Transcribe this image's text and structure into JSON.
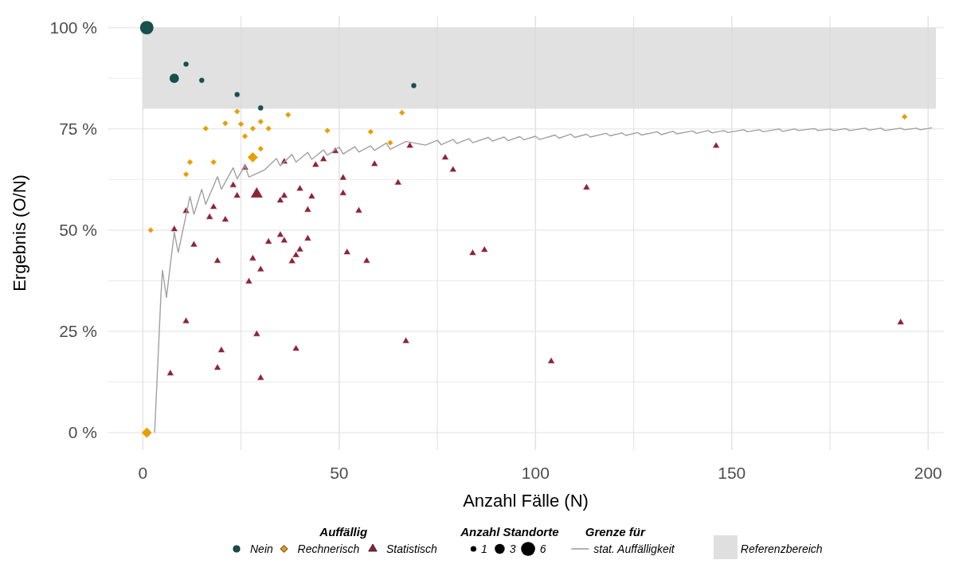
{
  "chart_data": {
    "type": "bubble",
    "xlabel": "Anzahl Fälle (N)",
    "ylabel": "Ergebnis (O/N)",
    "legend_title": "Auffällig",
    "annotations": [
      "Anzahl Standorte",
      "Grenze für"
    ],
    "xlim": [
      -9,
      204
    ],
    "ylim": [
      -4.3,
      102.9
    ],
    "xticks": [
      0,
      {
        "value": 25,
        "label": null
      },
      50,
      {
        "value": 75,
        "label": null
      },
      100,
      {
        "value": 125,
        "label": null
      },
      150,
      {
        "value": 175,
        "label": null
      },
      200
    ],
    "yticks": [
      {
        "value": 0,
        "label": "0 %"
      },
      {
        "value": 12.5,
        "label": null
      },
      {
        "value": 25,
        "label": "25 %"
      },
      {
        "value": 37.5,
        "label": null
      },
      {
        "value": 50,
        "label": "50 %"
      },
      {
        "value": 62.5,
        "label": null
      },
      {
        "value": 75,
        "label": "75 %"
      },
      {
        "value": 87.5,
        "label": null
      },
      {
        "value": 100,
        "label": "100 %"
      }
    ],
    "grid": true,
    "legend": "bottom",
    "size_legend": [
      1,
      3,
      6
    ],
    "bands": [
      {
        "axis": "y",
        "from": 80,
        "to": 100,
        "label": "Referenzbereich",
        "color": "#dfdfdf"
      }
    ],
    "series": [
      {
        "name": "Nein",
        "marker": "circle",
        "color": "#164f4c",
        "x": [
          1,
          11,
          8,
          15,
          24,
          30,
          69
        ],
        "values": [
          100,
          91,
          87.5,
          87,
          83.5,
          80.2,
          85.7
        ],
        "sizes": [
          6,
          1,
          3,
          1,
          1,
          1,
          1
        ]
      },
      {
        "name": "Rechnerisch",
        "marker": "diamond",
        "color": "#e69f00",
        "x": [
          24,
          37,
          66,
          16,
          21,
          25,
          28,
          30,
          32,
          26,
          47,
          58,
          63,
          30,
          28,
          12,
          18,
          11,
          2,
          1,
          194
        ],
        "values": [
          79.3,
          78.5,
          79,
          75.1,
          76.4,
          76.2,
          75.1,
          76.8,
          75.1,
          73.2,
          74.6,
          74.3,
          71.6,
          70.1,
          68,
          66.8,
          66.8,
          63.8,
          50,
          0,
          78
        ],
        "sizes": [
          1,
          1,
          1,
          1,
          1,
          1,
          1,
          1,
          1,
          1,
          1,
          1,
          1,
          1,
          3,
          1,
          1,
          1,
          1,
          3,
          1
        ]
      },
      {
        "name": "Statistisch",
        "marker": "triangle",
        "color": "#8b2436",
        "x": [
          26,
          36,
          44,
          46,
          49,
          59,
          68,
          51,
          65,
          23,
          29,
          24,
          36,
          35,
          40,
          43,
          51,
          42,
          55,
          11,
          18,
          17,
          21,
          8,
          35,
          36,
          42,
          32,
          13,
          40,
          39,
          38,
          52,
          57,
          19,
          28,
          30,
          27,
          11,
          29,
          20,
          39,
          67,
          19,
          7,
          30,
          77,
          79,
          113,
          146,
          84,
          87,
          104,
          193
        ],
        "values": [
          65.4,
          66.9,
          66.1,
          67.5,
          69.5,
          66.3,
          70.8,
          62.9,
          61.7,
          61.1,
          58.9,
          58.5,
          58.5,
          57.3,
          60.2,
          58.3,
          59.1,
          55,
          54.8,
          54.7,
          55.7,
          53.2,
          52.6,
          50.2,
          48.8,
          47.4,
          47.9,
          47.1,
          46.4,
          45.2,
          43.8,
          42.3,
          44.5,
          42.4,
          42.4,
          43,
          40.3,
          37.3,
          27.5,
          24.3,
          20.3,
          20.7,
          22.6,
          16,
          14.6,
          13.5,
          67.9,
          64.9,
          60.5,
          70.8,
          44.3,
          45.1,
          17.6,
          27.2
        ],
        "sizes": [
          1,
          1,
          1,
          1,
          1,
          1,
          1,
          1,
          1,
          1,
          3,
          1,
          1,
          1,
          1,
          1,
          1,
          1,
          1,
          1,
          1,
          1,
          1,
          1,
          1,
          1,
          1,
          1,
          1,
          1,
          1,
          1,
          1,
          1,
          1,
          1,
          1,
          1,
          1,
          1,
          1,
          1,
          1,
          1,
          1,
          1,
          1,
          1,
          1,
          1,
          1,
          1,
          1,
          1
        ]
      },
      {
        "name": "stat. Auffälligkeit",
        "type": "line",
        "color": "#a0a0a0",
        "x": [
          3,
          4.6,
          5,
          6,
          8,
          9,
          12,
          13,
          15,
          16,
          19,
          20,
          23,
          24,
          26,
          27,
          31,
          34,
          35,
          38,
          39,
          42,
          43,
          46,
          47,
          50,
          51,
          54,
          55,
          58,
          59,
          62,
          63,
          67,
          72,
          75,
          76,
          79,
          80,
          83,
          84,
          88,
          89,
          92,
          93,
          96,
          97,
          100,
          101,
          105,
          106,
          109,
          110,
          113,
          114,
          118,
          119,
          122,
          123,
          126,
          127,
          131,
          132,
          135,
          136,
          140,
          141,
          144,
          145,
          148,
          149,
          153,
          154,
          157,
          158,
          162,
          163,
          166,
          167,
          171,
          172,
          175,
          176,
          179,
          180,
          184,
          185,
          188,
          189,
          193,
          194,
          197,
          198,
          201
        ],
        "values": [
          0,
          34,
          40.1,
          33.4,
          49.5,
          44.5,
          58.3,
          53.9,
          60.1,
          56.4,
          63.2,
          60.1,
          65.4,
          62.7,
          65.9,
          63.1,
          64.9,
          67.7,
          65.9,
          68.7,
          66.8,
          69.2,
          67.5,
          69.8,
          68.5,
          70.5,
          68.8,
          70.6,
          69.3,
          70.8,
          69.7,
          71.5,
          70,
          71.9,
          71,
          72.2,
          71.1,
          72.4,
          71.4,
          72.6,
          71.6,
          72.9,
          72,
          73,
          72.1,
          73.1,
          72.3,
          73.2,
          72.4,
          73.5,
          72.7,
          73.7,
          72.9,
          73.7,
          73,
          73.9,
          73.3,
          74,
          73.4,
          74.1,
          73.5,
          74.3,
          73.6,
          74.4,
          73.8,
          74.5,
          73.9,
          74.6,
          74,
          74.6,
          74.1,
          74.8,
          74.3,
          74.8,
          74.3,
          75,
          74.4,
          75,
          74.6,
          75.1,
          74.6,
          75,
          74.6,
          75.1,
          74.6,
          75.2,
          74.7,
          75.2,
          74.6,
          75.2,
          74.8,
          75.2,
          74.8,
          75.3
        ]
      }
    ]
  }
}
